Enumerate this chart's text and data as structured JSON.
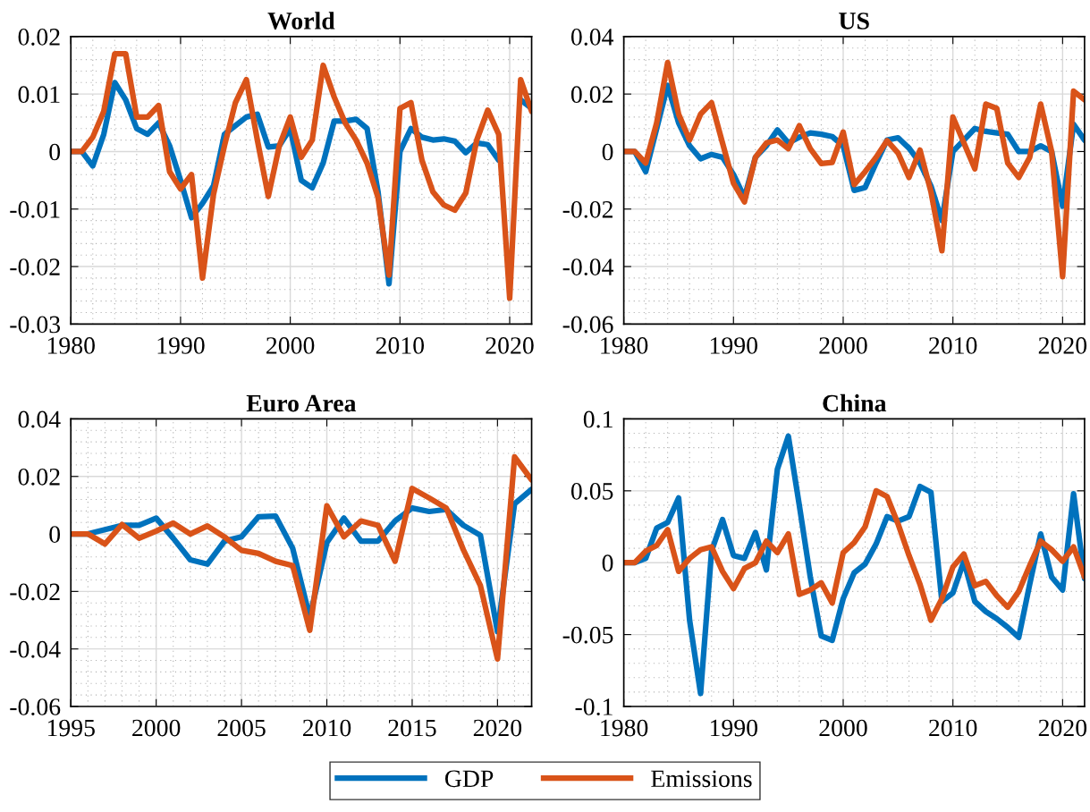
{
  "chart_data": [
    {
      "type": "line",
      "title": "World",
      "xlim": [
        1980,
        2022
      ],
      "xticks": [
        1980,
        1990,
        2000,
        2010,
        2020
      ],
      "ylim": [
        -0.03,
        0.02
      ],
      "yticks": [
        -0.03,
        -0.02,
        -0.01,
        0,
        0.01,
        0.02
      ],
      "grid": true,
      "legend": "bottom",
      "x": [
        1980,
        1981,
        1982,
        1983,
        1984,
        1985,
        1986,
        1987,
        1988,
        1989,
        1990,
        1991,
        1992,
        1993,
        1994,
        1995,
        1996,
        1997,
        1998,
        1999,
        2000,
        2001,
        2002,
        2003,
        2004,
        2005,
        2006,
        2007,
        2008,
        2009,
        2010,
        2011,
        2012,
        2013,
        2014,
        2015,
        2016,
        2017,
        2018,
        2019,
        2020,
        2021,
        2022
      ],
      "series": [
        {
          "name": "GDP",
          "color": "#0072bd",
          "values": [
            0,
            0,
            -0.0025,
            0.003,
            0.012,
            0.009,
            0.004,
            0.003,
            0.005,
            0.001,
            -0.005,
            -0.0115,
            -0.009,
            -0.006,
            0.003,
            0.0045,
            0.006,
            0.0065,
            0.0008,
            0.001,
            0.004,
            -0.005,
            -0.0063,
            -0.002,
            0.0053,
            0.0053,
            0.0056,
            0.004,
            -0.007,
            -0.023,
            0,
            0.004,
            0.0025,
            0.002,
            0.0022,
            0.0018,
            -0.0002,
            0.0015,
            0.0012,
            -0.0015,
            null,
            0.009,
            0.0075
          ]
        },
        {
          "name": "Emissions",
          "color": "#d95319",
          "values": [
            0,
            0,
            0.0025,
            0.007,
            0.017,
            0.017,
            0.006,
            0.006,
            0.008,
            -0.0035,
            -0.0065,
            -0.004,
            -0.022,
            -0.0075,
            0.001,
            0.0085,
            0.0125,
            0.002,
            -0.0078,
            0.001,
            0.006,
            -0.001,
            0.002,
            0.015,
            0.0095,
            0.005,
            0.002,
            -0.002,
            -0.008,
            -0.0215,
            0.0075,
            0.0085,
            -0.0015,
            -0.007,
            -0.0093,
            -0.0102,
            -0.0072,
            0.002,
            0.0072,
            0.003,
            -0.0255,
            0.0125,
            0.007
          ]
        }
      ]
    },
    {
      "type": "line",
      "title": "US",
      "xlim": [
        1980,
        2022
      ],
      "xticks": [
        1980,
        1990,
        2000,
        2010,
        2020
      ],
      "ylim": [
        -0.06,
        0.04
      ],
      "yticks": [
        -0.06,
        -0.04,
        -0.02,
        0,
        0.02,
        0.04
      ],
      "grid": true,
      "x": [
        1980,
        1981,
        1982,
        1983,
        1984,
        1985,
        1986,
        1987,
        1988,
        1989,
        1990,
        1991,
        1992,
        1993,
        1994,
        1995,
        1996,
        1997,
        1998,
        1999,
        2000,
        2001,
        2002,
        2003,
        2004,
        2005,
        2006,
        2007,
        2008,
        2009,
        2010,
        2011,
        2012,
        2013,
        2014,
        2015,
        2016,
        2017,
        2018,
        2019,
        2020,
        2021,
        2022
      ],
      "series": [
        {
          "name": "GDP",
          "color": "#0072bd",
          "values": [
            0,
            0,
            -0.007,
            0.008,
            0.023,
            0.01,
            0.002,
            -0.0025,
            -0.001,
            -0.002,
            -0.008,
            -0.016,
            -0.002,
            0.002,
            0.0075,
            0.003,
            0.005,
            0.0065,
            0.006,
            0.0052,
            0.002,
            -0.0135,
            -0.0125,
            -0.004,
            0.004,
            0.0048,
            0.0012,
            -0.004,
            -0.012,
            -0.024,
            0,
            0.004,
            0.008,
            0.007,
            0.0065,
            0.006,
            0,
            0,
            0.002,
            0,
            -0.019,
            0.0095,
            0.004
          ]
        },
        {
          "name": "Emissions",
          "color": "#d95319",
          "values": [
            0,
            0,
            -0.004,
            0.01,
            0.031,
            0.013,
            0.004,
            0.013,
            0.017,
            0.003,
            -0.011,
            -0.0175,
            -0.002,
            0.003,
            0.004,
            0.001,
            0.009,
            0.001,
            -0.0042,
            -0.0038,
            0.0068,
            -0.0115,
            -0.007,
            -0.002,
            0.0038,
            -0.0005,
            -0.009,
            0.0005,
            -0.014,
            -0.0345,
            0.012,
            0.003,
            -0.006,
            0.0165,
            0.015,
            -0.004,
            -0.009,
            -0.002,
            0.0165,
            0,
            -0.0435,
            0.021,
            0.018
          ]
        }
      ]
    },
    {
      "type": "line",
      "title": "Euro Area",
      "xlim": [
        1995,
        2022
      ],
      "xticks": [
        1995,
        2000,
        2005,
        2010,
        2015,
        2020
      ],
      "ylim": [
        -0.06,
        0.04
      ],
      "yticks": [
        -0.06,
        -0.04,
        -0.02,
        0,
        0.02,
        0.04
      ],
      "grid": true,
      "x": [
        1995,
        1996,
        1997,
        1998,
        1999,
        2000,
        2001,
        2002,
        2003,
        2004,
        2005,
        2006,
        2007,
        2008,
        2009,
        2010,
        2011,
        2012,
        2013,
        2014,
        2015,
        2016,
        2017,
        2018,
        2019,
        2020,
        2021,
        2022
      ],
      "series": [
        {
          "name": "GDP",
          "color": "#0072bd",
          "values": [
            0,
            0,
            0.0015,
            0.003,
            0.003,
            0.0055,
            -0.0015,
            -0.009,
            -0.0105,
            -0.0025,
            -0.001,
            0.006,
            0.0062,
            -0.005,
            -0.029,
            -0.003,
            0.0055,
            -0.0025,
            -0.0025,
            0.0045,
            0.009,
            0.0078,
            0.0085,
            0.003,
            -0.0005,
            -0.034,
            0.0105,
            0.0155
          ]
        },
        {
          "name": "Emissions",
          "color": "#d95319",
          "values": [
            0,
            0,
            -0.0035,
            0.0033,
            -0.0015,
            0.001,
            0.0038,
            0,
            0.0028,
            -0.001,
            -0.0057,
            -0.0068,
            -0.0095,
            -0.011,
            -0.0335,
            0.0098,
            -0.001,
            0.0045,
            0.003,
            -0.0095,
            0.0158,
            0.0125,
            0.009,
            -0.0055,
            -0.018,
            -0.0435,
            0.0268,
            0.0188
          ]
        }
      ]
    },
    {
      "type": "line",
      "title": "China",
      "xlim": [
        1980,
        2022
      ],
      "xticks": [
        1980,
        1990,
        2000,
        2010,
        2020
      ],
      "ylim": [
        -0.1,
        0.1
      ],
      "yticks": [
        -0.1,
        -0.05,
        0,
        0.05,
        0.1
      ],
      "grid": true,
      "x": [
        1980,
        1981,
        1982,
        1983,
        1984,
        1985,
        1986,
        1987,
        1988,
        1989,
        1990,
        1991,
        1992,
        1993,
        1994,
        1995,
        1996,
        1997,
        1998,
        1999,
        2000,
        2001,
        2002,
        2003,
        2004,
        2005,
        2006,
        2007,
        2008,
        2009,
        2010,
        2011,
        2012,
        2013,
        2014,
        2015,
        2016,
        2017,
        2018,
        2019,
        2020,
        2021,
        2022
      ],
      "series": [
        {
          "name": "GDP",
          "color": "#0072bd",
          "values": [
            0,
            0,
            0.003,
            0.024,
            0.028,
            0.045,
            -0.04,
            -0.091,
            0.008,
            0.03,
            0.005,
            0.003,
            0.021,
            -0.005,
            0.065,
            0.088,
            0.04,
            -0.01,
            -0.051,
            -0.054,
            -0.025,
            -0.007,
            -0.001,
            0.013,
            0.032,
            0.029,
            0.032,
            0.053,
            0.049,
            -0.027,
            -0.021,
            0.001,
            -0.027,
            -0.034,
            -0.039,
            -0.045,
            -0.052,
            -0.015,
            0.02,
            -0.01,
            -0.019,
            0.048,
            -0.011
          ]
        },
        {
          "name": "Emissions",
          "color": "#d95319",
          "values": [
            0,
            0,
            0.008,
            0.012,
            0.023,
            -0.006,
            0.003,
            0.009,
            0.011,
            -0.006,
            -0.018,
            -0.004,
            0,
            0.015,
            0.007,
            0.02,
            -0.022,
            -0.019,
            -0.014,
            -0.028,
            0.007,
            0.014,
            0.025,
            0.05,
            0.046,
            0.027,
            0.005,
            -0.015,
            -0.04,
            -0.025,
            -0.003,
            0.006,
            -0.016,
            -0.013,
            -0.023,
            -0.031,
            -0.02,
            -0.002,
            0.015,
            0.009,
            0.001,
            0.011,
            -0.01
          ]
        }
      ]
    }
  ]
}
